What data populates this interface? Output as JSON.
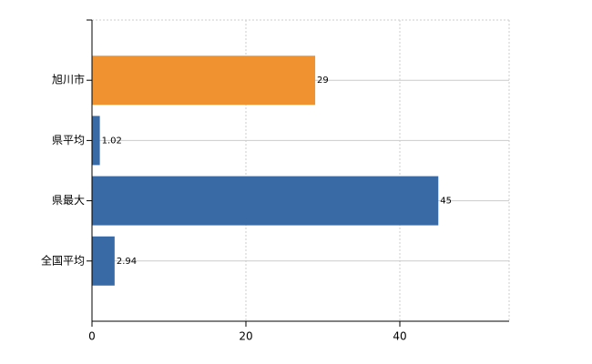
{
  "chart_data": {
    "type": "bar",
    "orientation": "horizontal",
    "categories": [
      "旭川市",
      "県平均",
      "県最大",
      "全国平均"
    ],
    "values": [
      29,
      1.02,
      45,
      2.94
    ],
    "colors": [
      "#f0922f",
      "#3a6aa6",
      "#3a6aa6",
      "#3a6aa6"
    ],
    "xlim": [
      0,
      54.2
    ],
    "xticks": [
      0,
      20,
      40
    ],
    "grid": true
  }
}
